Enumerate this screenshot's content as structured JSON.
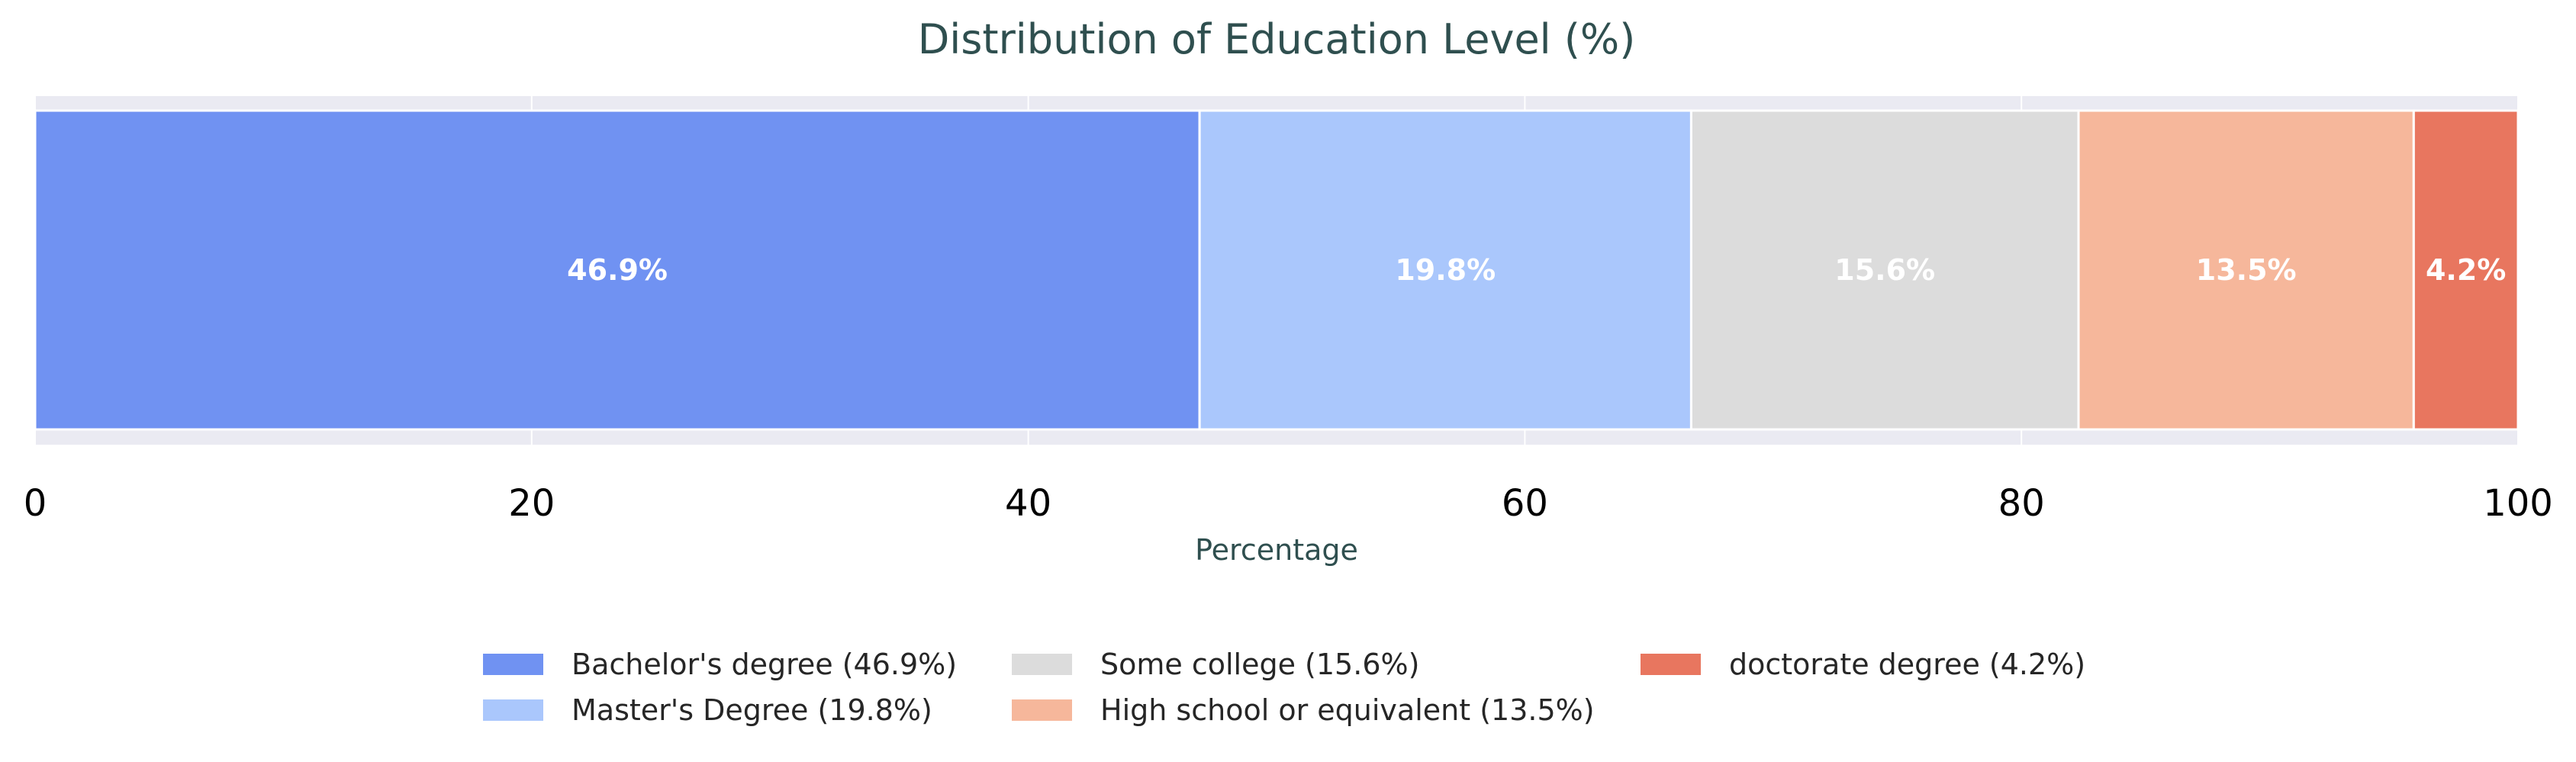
{
  "chart_data": {
    "type": "bar",
    "orientation": "horizontal-stacked",
    "title": "Distribution of Education Level (%)",
    "xlabel": "Percentage",
    "ylabel": "",
    "xlim": [
      0,
      100
    ],
    "xticks": [
      "0",
      "20",
      "40",
      "60",
      "80",
      "100"
    ],
    "grid": true,
    "legend_position": "bottom-center",
    "series": [
      {
        "name": "Bachelor's degree",
        "value": 46.9,
        "label": "46.9%",
        "legend": "Bachelor's degree (46.9%)",
        "color": "#7092f2"
      },
      {
        "name": "Master's Degree",
        "value": 19.8,
        "label": "19.8%",
        "legend": "Master's Degree (19.8%)",
        "color": "#aac7fc"
      },
      {
        "name": "Some college",
        "value": 15.6,
        "label": "15.6%",
        "legend": "Some college (15.6%)",
        "color": "#dcdcdc"
      },
      {
        "name": "High school or equivalent",
        "value": 13.5,
        "label": "13.5%",
        "legend": "High school or equivalent (13.5%)",
        "color": "#f6b79b"
      },
      {
        "name": "doctorate degree",
        "value": 4.2,
        "label": "4.2%",
        "legend": "doctorate degree (4.2%)",
        "color": "#e8765f"
      }
    ],
    "colors": {
      "plot_background": "#eaeaf2",
      "grid": "#ffffff",
      "title": "#2f4f4f",
      "axis_label": "#2f4f4f"
    }
  }
}
